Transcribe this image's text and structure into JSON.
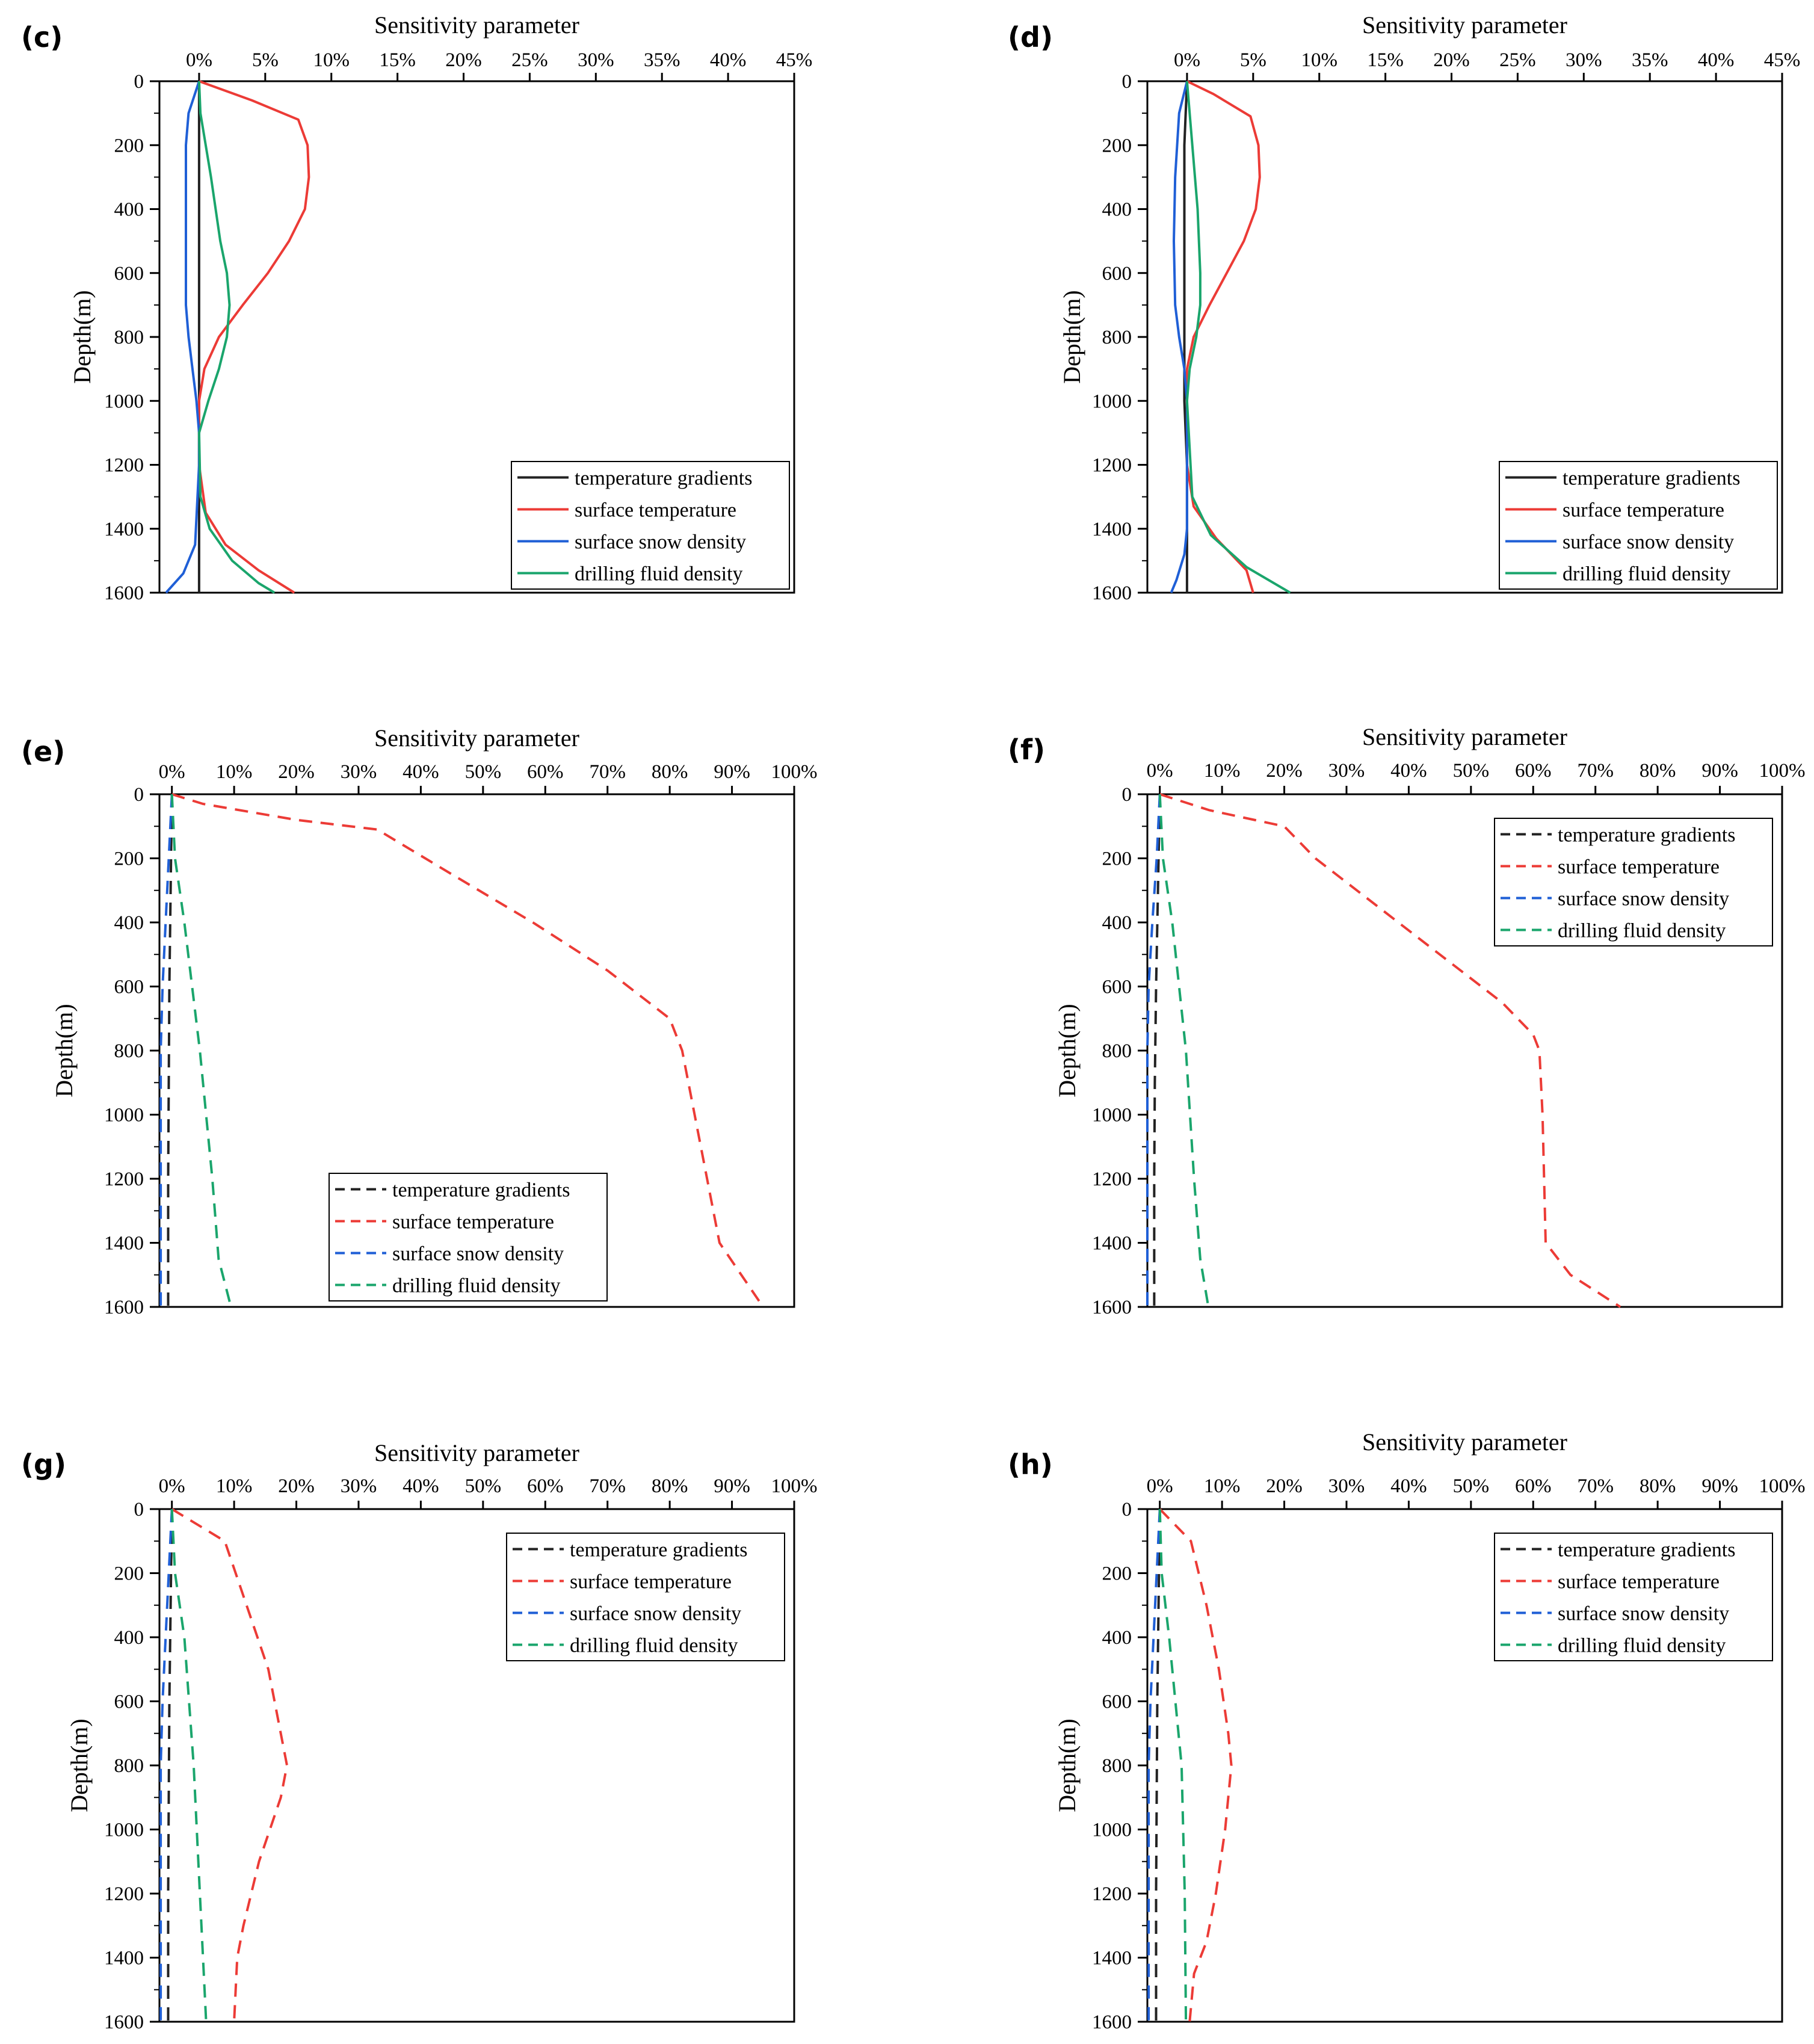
{
  "figure": {
    "series_names": [
      "temperature gradients",
      "surface temperature",
      "surface snow density",
      "drilling fluid density"
    ],
    "series_colors": [
      "#222222",
      "#ec3b36",
      "#1f5fd6",
      "#1aa56c"
    ]
  },
  "chart_data": [
    {
      "label": "(c)",
      "type": "line",
      "title": "Sensitivity parameter",
      "xlabel": "Sensitivity parameter",
      "ylabel": "Depth(m)",
      "xlim": [
        -3,
        45
      ],
      "ylim": [
        0,
        1600
      ],
      "xticks": [
        0,
        5,
        10,
        15,
        20,
        25,
        30,
        35,
        40,
        45
      ],
      "xtick_labels": [
        "0%",
        "5%",
        "10%",
        "15%",
        "20%",
        "25%",
        "30%",
        "35%",
        "40%",
        "45%"
      ],
      "yticks": [
        0,
        200,
        400,
        600,
        800,
        1000,
        1200,
        1400,
        1600
      ],
      "ytick_labels": [
        "0",
        "200",
        "400",
        "600",
        "800",
        "1000",
        "1200",
        "1400",
        "1600"
      ],
      "line_style": "solid",
      "legend_pos": "lower-right",
      "legend_labels": [
        "temperature gradients",
        "surface temperature",
        "surface snow density",
        "drilling fluid density"
      ],
      "series": [
        {
          "name": "temperature gradients",
          "color": "#222222",
          "x": [
            0,
            0,
            0,
            0,
            0,
            0,
            0,
            0,
            0,
            0,
            0,
            0,
            0,
            0,
            0,
            0,
            0
          ],
          "y": [
            0,
            100,
            200,
            300,
            400,
            500,
            600,
            700,
            800,
            900,
            1000,
            1100,
            1200,
            1300,
            1400,
            1500,
            1600
          ]
        },
        {
          "name": "surface temperature",
          "color": "#ec3b36",
          "x": [
            0,
            4,
            7.5,
            8.2,
            8.3,
            8.0,
            6.8,
            5.2,
            3.3,
            1.5,
            0.4,
            0,
            0,
            0.5,
            2.0,
            4.5,
            7.2
          ],
          "y": [
            0,
            60,
            120,
            200,
            300,
            400,
            500,
            600,
            700,
            800,
            900,
            1000,
            1200,
            1350,
            1450,
            1530,
            1600
          ]
        },
        {
          "name": "surface snow density",
          "color": "#1f5fd6",
          "x": [
            0,
            -0.8,
            -1.0,
            -1.0,
            -1.0,
            -1.0,
            -0.8,
            -0.5,
            -0.2,
            0,
            0,
            -0.3,
            -1.2,
            -2.5
          ],
          "y": [
            0,
            100,
            200,
            400,
            600,
            700,
            800,
            900,
            1000,
            1100,
            1200,
            1450,
            1540,
            1600
          ]
        },
        {
          "name": "drilling fluid density",
          "color": "#1aa56c",
          "x": [
            0,
            0.1,
            0.9,
            1.6,
            2.1,
            2.3,
            2.1,
            1.5,
            0.7,
            0,
            0.1,
            0.8,
            2.5,
            4.5,
            5.7
          ],
          "y": [
            0,
            100,
            300,
            500,
            600,
            700,
            800,
            900,
            1000,
            1100,
            1300,
            1400,
            1500,
            1570,
            1600
          ]
        }
      ]
    },
    {
      "label": "(d)",
      "type": "line",
      "title": "Sensitivity parameter",
      "xlabel": "Sensitivity parameter",
      "ylabel": "Depth(m)",
      "xlim": [
        -3,
        45
      ],
      "ylim": [
        0,
        1600
      ],
      "xticks": [
        0,
        5,
        10,
        15,
        20,
        25,
        30,
        35,
        40,
        45
      ],
      "xtick_labels": [
        "0%",
        "5%",
        "10%",
        "15%",
        "20%",
        "25%",
        "30%",
        "35%",
        "40%",
        "45%"
      ],
      "yticks": [
        0,
        200,
        400,
        600,
        800,
        1000,
        1200,
        1400,
        1600
      ],
      "ytick_labels": [
        "0",
        "200",
        "400",
        "600",
        "800",
        "1000",
        "1200",
        "1400",
        "1600"
      ],
      "line_style": "solid",
      "legend_pos": "lower-right",
      "legend_labels": [
        "temperature gradients",
        "surface temperature",
        "surface snow density",
        "drilling fluid density"
      ],
      "series": [
        {
          "name": "temperature gradients",
          "color": "#222222",
          "x": [
            0,
            -0.1,
            -0.2,
            -0.2,
            -0.2,
            -0.2,
            -0.2,
            -0.1,
            0,
            0,
            0
          ],
          "y": [
            0,
            100,
            200,
            400,
            600,
            800,
            1000,
            1100,
            1200,
            1400,
            1600
          ]
        },
        {
          "name": "surface temperature",
          "color": "#ec3b36",
          "x": [
            0,
            2,
            4.8,
            5.4,
            5.5,
            5.2,
            4.3,
            3.0,
            1.7,
            0.5,
            0,
            0,
            0.5,
            2.2,
            4.5,
            5.0
          ],
          "y": [
            0,
            40,
            110,
            200,
            300,
            400,
            500,
            600,
            700,
            800,
            900,
            1200,
            1330,
            1430,
            1530,
            1600
          ]
        },
        {
          "name": "surface snow density",
          "color": "#1f5fd6",
          "x": [
            0,
            -0.6,
            -0.9,
            -1.0,
            -0.9,
            -0.6,
            -0.2,
            0,
            0,
            -0.2,
            -0.8,
            -1.2
          ],
          "y": [
            0,
            100,
            300,
            500,
            700,
            800,
            900,
            1000,
            1400,
            1480,
            1560,
            1600
          ]
        },
        {
          "name": "drilling fluid density",
          "color": "#1aa56c",
          "x": [
            0,
            0.4,
            0.8,
            1.0,
            1.0,
            0.7,
            0.2,
            0,
            0.4,
            1.8,
            4.5,
            7.8
          ],
          "y": [
            0,
            200,
            400,
            600,
            700,
            800,
            900,
            1000,
            1300,
            1420,
            1520,
            1600
          ]
        }
      ]
    },
    {
      "label": "(e)",
      "type": "line",
      "title": "Sensitivity parameter",
      "xlabel": "Sensitivity parameter",
      "ylabel": "Depth(m)",
      "xlim": [
        -2,
        100
      ],
      "ylim": [
        0,
        1600
      ],
      "xticks": [
        0,
        10,
        20,
        30,
        40,
        50,
        60,
        70,
        80,
        90,
        100
      ],
      "xtick_labels": [
        "0%",
        "10%",
        "20%",
        "30%",
        "40%",
        "50%",
        "60%",
        "70%",
        "80%",
        "90%",
        "100%"
      ],
      "yticks": [
        0,
        200,
        400,
        600,
        800,
        1000,
        1200,
        1400,
        1600
      ],
      "ytick_labels": [
        "0",
        "200",
        "400",
        "600",
        "800",
        "1000",
        "1200",
        "1400",
        "1600"
      ],
      "line_style": "dashed",
      "legend_pos": "lower-center",
      "legend_labels": [
        "temperature gradients",
        "surface temperature",
        "surface snow density",
        "drilling fluid density"
      ],
      "series": [
        {
          "name": "temperature gradients",
          "color": "#222222",
          "x": [
            0,
            -0.2,
            -0.4,
            -0.5,
            -0.6,
            -0.6
          ],
          "y": [
            0,
            300,
            600,
            900,
            1200,
            1600
          ]
        },
        {
          "name": "surface temperature",
          "color": "#ec3b36",
          "x": [
            0,
            5,
            20,
            33,
            45,
            58,
            70,
            80,
            82,
            84,
            86,
            88,
            95
          ],
          "y": [
            0,
            30,
            80,
            110,
            250,
            400,
            550,
            700,
            800,
            1000,
            1200,
            1400,
            1600
          ]
        },
        {
          "name": "surface snow density",
          "color": "#1f5fd6",
          "x": [
            0,
            -0.5,
            -1.0,
            -1.5,
            -1.8,
            -1.8
          ],
          "y": [
            0,
            200,
            400,
            600,
            800,
            1600
          ]
        },
        {
          "name": "drilling fluid density",
          "color": "#1aa56c",
          "x": [
            0,
            0.5,
            2,
            4.5,
            6.5,
            7.5,
            9.5
          ],
          "y": [
            0,
            200,
            400,
            800,
            1200,
            1450,
            1600
          ]
        }
      ]
    },
    {
      "label": "(f)",
      "type": "line",
      "title": "Sensitivity parameter",
      "xlabel": "Sensitivity parameter",
      "ylabel": "Depth(m)",
      "xlim": [
        -2,
        100
      ],
      "ylim": [
        0,
        1600
      ],
      "xticks": [
        0,
        10,
        20,
        30,
        40,
        50,
        60,
        70,
        80,
        90,
        100
      ],
      "xtick_labels": [
        "0%",
        "10%",
        "20%",
        "30%",
        "40%",
        "50%",
        "60%",
        "70%",
        "80%",
        "90%",
        "100%"
      ],
      "yticks": [
        0,
        200,
        400,
        600,
        800,
        1000,
        1200,
        1400,
        1600
      ],
      "ytick_labels": [
        "0",
        "200",
        "400",
        "600",
        "800",
        "1000",
        "1200",
        "1400",
        "1600"
      ],
      "line_style": "dashed",
      "legend_pos": "upper-right",
      "legend_labels": [
        "temperature gradients",
        "surface temperature",
        "surface snow density",
        "drilling fluid density"
      ],
      "series": [
        {
          "name": "temperature gradients",
          "color": "#222222",
          "x": [
            0,
            -0.3,
            -0.6,
            -0.8,
            -0.9,
            -0.9
          ],
          "y": [
            0,
            300,
            600,
            900,
            1200,
            1600
          ]
        },
        {
          "name": "surface temperature",
          "color": "#ec3b36",
          "x": [
            0,
            8,
            20,
            25,
            35,
            45,
            55,
            60,
            61,
            61.5,
            62,
            66,
            74
          ],
          "y": [
            0,
            50,
            100,
            200,
            350,
            500,
            650,
            750,
            800,
            1000,
            1400,
            1500,
            1600
          ]
        },
        {
          "name": "surface snow density",
          "color": "#1f5fd6",
          "x": [
            0,
            -0.5,
            -1.2,
            -1.8,
            -2.0,
            -2.0
          ],
          "y": [
            0,
            200,
            400,
            600,
            800,
            1600
          ]
        },
        {
          "name": "drilling fluid density",
          "color": "#1aa56c",
          "x": [
            0,
            0.5,
            2,
            4.2,
            5.5,
            6.5,
            7.8
          ],
          "y": [
            0,
            200,
            400,
            800,
            1200,
            1450,
            1600
          ]
        }
      ]
    },
    {
      "label": "(g)",
      "type": "line",
      "title": "Sensitivity parameter",
      "xlabel": "Sensitivity parameter",
      "ylabel": "Depth(m)",
      "xlim": [
        -2,
        100
      ],
      "ylim": [
        0,
        1600
      ],
      "xticks": [
        0,
        10,
        20,
        30,
        40,
        50,
        60,
        70,
        80,
        90,
        100
      ],
      "xtick_labels": [
        "0%",
        "10%",
        "20%",
        "30%",
        "40%",
        "50%",
        "60%",
        "70%",
        "80%",
        "90%",
        "100%"
      ],
      "yticks": [
        0,
        200,
        400,
        600,
        800,
        1000,
        1200,
        1400,
        1600
      ],
      "ytick_labels": [
        "0",
        "200",
        "400",
        "600",
        "800",
        "1000",
        "1200",
        "1400",
        "1600"
      ],
      "line_style": "dashed",
      "legend_pos": "upper-right",
      "legend_labels": [
        "temperature gradients",
        "surface temperature",
        "surface snow density",
        "drilling fluid density"
      ],
      "series": [
        {
          "name": "temperature gradients",
          "color": "#222222",
          "x": [
            0,
            -0.2,
            -0.4,
            -0.5,
            -0.6,
            -0.6
          ],
          "y": [
            0,
            300,
            600,
            900,
            1200,
            1600
          ]
        },
        {
          "name": "surface temperature",
          "color": "#ec3b36",
          "x": [
            0,
            8.5,
            12,
            15.5,
            18.5,
            17.5,
            14,
            11.5,
            10.5,
            10
          ],
          "y": [
            0,
            100,
            300,
            500,
            800,
            900,
            1100,
            1300,
            1400,
            1600
          ]
        },
        {
          "name": "surface snow density",
          "color": "#1f5fd6",
          "x": [
            0,
            -0.5,
            -1.0,
            -1.5,
            -1.8,
            -1.8
          ],
          "y": [
            0,
            200,
            400,
            600,
            800,
            1600
          ]
        },
        {
          "name": "drilling fluid density",
          "color": "#1aa56c",
          "x": [
            0,
            0.5,
            2,
            3.5,
            4.5,
            5.5
          ],
          "y": [
            0,
            200,
            400,
            800,
            1200,
            1600
          ]
        }
      ]
    },
    {
      "label": "(h)",
      "type": "line",
      "title": "Sensitivity parameter",
      "xlabel": "Sensitivity parameter",
      "ylabel": "Depth(m)",
      "xlim": [
        -2,
        100
      ],
      "ylim": [
        0,
        1600
      ],
      "xticks": [
        0,
        10,
        20,
        30,
        40,
        50,
        60,
        70,
        80,
        90,
        100
      ],
      "xtick_labels": [
        "0%",
        "10%",
        "20%",
        "30%",
        "40%",
        "50%",
        "60%",
        "70%",
        "80%",
        "90%",
        "100%"
      ],
      "yticks": [
        0,
        200,
        400,
        600,
        800,
        1000,
        1200,
        1400,
        1600
      ],
      "ytick_labels": [
        "0",
        "200",
        "400",
        "600",
        "800",
        "1000",
        "1200",
        "1400",
        "1600"
      ],
      "line_style": "dashed",
      "legend_pos": "upper-right",
      "legend_labels": [
        "temperature gradients",
        "surface temperature",
        "surface snow density",
        "drilling fluid density"
      ],
      "series": [
        {
          "name": "temperature gradients",
          "color": "#222222",
          "x": [
            0,
            -0.2,
            -0.4,
            -0.5,
            -0.6,
            -0.6
          ],
          "y": [
            0,
            300,
            600,
            900,
            1200,
            1600
          ]
        },
        {
          "name": "surface temperature",
          "color": "#ec3b36",
          "x": [
            0,
            5,
            7.5,
            9.5,
            11,
            11.5,
            10.5,
            9,
            7.5,
            5.5,
            4.8
          ],
          "y": [
            0,
            100,
            300,
            500,
            700,
            800,
            1000,
            1200,
            1350,
            1450,
            1600
          ]
        },
        {
          "name": "surface snow density",
          "color": "#1f5fd6",
          "x": [
            0,
            -0.5,
            -1.0,
            -1.5,
            -1.8,
            -1.8
          ],
          "y": [
            0,
            200,
            400,
            600,
            800,
            1600
          ]
        },
        {
          "name": "drilling fluid density",
          "color": "#1aa56c",
          "x": [
            0,
            0.3,
            1.5,
            3.5,
            4.0,
            4.2
          ],
          "y": [
            0,
            200,
            400,
            800,
            1200,
            1600
          ]
        }
      ]
    }
  ]
}
